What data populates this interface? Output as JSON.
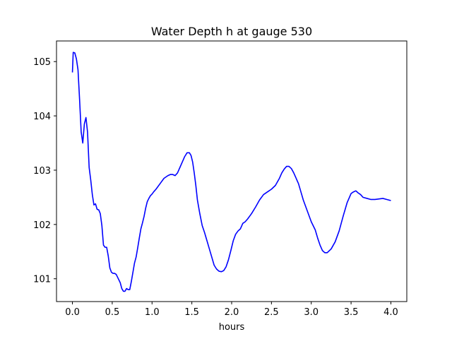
{
  "chart_data": {
    "type": "line",
    "title": "Water Depth h at gauge 530",
    "xlabel": "hours",
    "ylabel": "",
    "xlim": [
      -0.2,
      4.2
    ],
    "ylim": [
      100.58,
      105.38
    ],
    "x_ticks": [
      0.0,
      0.5,
      1.0,
      1.5,
      2.0,
      2.5,
      3.0,
      3.5,
      4.0
    ],
    "x_tick_labels": [
      "0.0",
      "0.5",
      "1.0",
      "1.5",
      "2.0",
      "2.5",
      "3.0",
      "3.5",
      "4.0"
    ],
    "y_ticks": [
      101,
      102,
      103,
      104,
      105
    ],
    "y_tick_labels": [
      "101",
      "102",
      "103",
      "104",
      "105"
    ],
    "grid": false,
    "legend": "none",
    "line_color": "#0000ff",
    "series": [
      {
        "x": [
          0.0,
          0.01,
          0.03,
          0.05,
          0.07,
          0.09,
          0.11,
          0.13,
          0.15,
          0.17,
          0.19,
          0.21,
          0.23,
          0.25,
          0.27,
          0.29,
          0.31,
          0.33,
          0.35,
          0.37,
          0.39,
          0.41,
          0.43,
          0.45,
          0.47,
          0.49,
          0.51,
          0.53,
          0.55,
          0.57,
          0.6,
          0.62,
          0.64,
          0.66,
          0.68,
          0.7,
          0.72,
          0.74,
          0.76,
          0.78,
          0.8,
          0.82,
          0.84,
          0.86,
          0.88,
          0.9,
          0.92,
          0.94,
          0.96,
          0.98,
          1.0,
          1.02,
          1.05,
          1.1,
          1.15,
          1.2,
          1.23,
          1.26,
          1.29,
          1.32,
          1.35,
          1.38,
          1.41,
          1.44,
          1.47,
          1.49,
          1.51,
          1.53,
          1.55,
          1.57,
          1.6,
          1.63,
          1.66,
          1.69,
          1.72,
          1.75,
          1.78,
          1.81,
          1.84,
          1.87,
          1.9,
          1.93,
          1.96,
          1.99,
          2.02,
          2.05,
          2.08,
          2.11,
          2.14,
          2.17,
          2.2,
          2.25,
          2.3,
          2.35,
          2.4,
          2.45,
          2.5,
          2.55,
          2.6,
          2.63,
          2.66,
          2.69,
          2.72,
          2.75,
          2.78,
          2.81,
          2.84,
          2.87,
          2.9,
          2.95,
          3.0,
          3.05,
          3.08,
          3.11,
          3.14,
          3.17,
          3.2,
          3.25,
          3.3,
          3.35,
          3.4,
          3.45,
          3.5,
          3.53,
          3.56,
          3.59,
          3.62,
          3.65,
          3.7,
          3.75,
          3.8,
          3.85,
          3.9,
          3.95,
          4.0
        ],
        "values": [
          104.8,
          105.17,
          105.16,
          105.05,
          104.85,
          104.3,
          103.7,
          103.5,
          103.85,
          103.97,
          103.7,
          103.05,
          102.82,
          102.55,
          102.36,
          102.38,
          102.28,
          102.27,
          102.2,
          101.98,
          101.62,
          101.58,
          101.58,
          101.42,
          101.2,
          101.12,
          101.1,
          101.1,
          101.08,
          101.02,
          100.93,
          100.82,
          100.77,
          100.77,
          100.82,
          100.8,
          100.8,
          100.95,
          101.12,
          101.29,
          101.4,
          101.57,
          101.75,
          101.92,
          102.03,
          102.15,
          102.3,
          102.42,
          102.48,
          102.53,
          102.56,
          102.6,
          102.65,
          102.75,
          102.85,
          102.9,
          102.92,
          102.92,
          102.9,
          102.95,
          103.05,
          103.15,
          103.25,
          103.32,
          103.32,
          103.27,
          103.15,
          102.95,
          102.72,
          102.45,
          102.2,
          101.98,
          101.85,
          101.7,
          101.55,
          101.4,
          101.25,
          101.18,
          101.14,
          101.13,
          101.15,
          101.22,
          101.35,
          101.52,
          101.7,
          101.82,
          101.88,
          101.92,
          102.02,
          102.05,
          102.1,
          102.2,
          102.32,
          102.45,
          102.55,
          102.6,
          102.65,
          102.72,
          102.85,
          102.95,
          103.02,
          103.07,
          103.07,
          103.03,
          102.95,
          102.85,
          102.75,
          102.6,
          102.45,
          102.25,
          102.05,
          101.9,
          101.75,
          101.62,
          101.52,
          101.48,
          101.48,
          101.55,
          101.68,
          101.88,
          102.15,
          102.4,
          102.57,
          102.6,
          102.62,
          102.58,
          102.55,
          102.5,
          102.48,
          102.46,
          102.46,
          102.47,
          102.48,
          102.46,
          102.44
        ]
      }
    ]
  }
}
